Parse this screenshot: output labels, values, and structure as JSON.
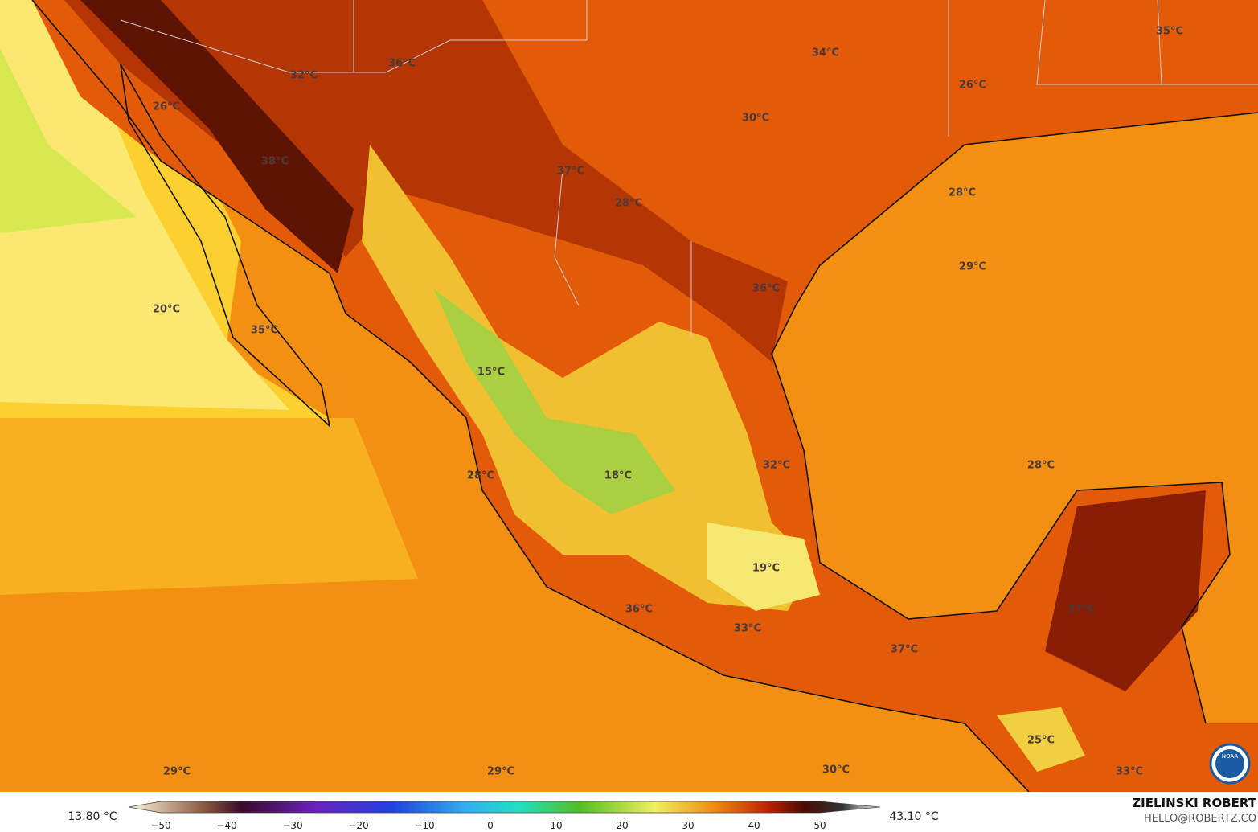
{
  "map": {
    "labels": [
      "35°C",
      "34°C",
      "36°C",
      "32°C",
      "26°C",
      "26°C",
      "30°C",
      "38°C",
      "37°C",
      "28°C",
      "28°C",
      "29°C",
      "36°C",
      "20°C",
      "35°C",
      "15°C",
      "28°C",
      "32°C",
      "28°C",
      "18°C",
      "19°C",
      "37°C",
      "36°C",
      "33°C",
      "37°C",
      "25°C",
      "29°C",
      "29°C",
      "30°C",
      "33°C"
    ]
  },
  "legend": {
    "min": "13.80 °C",
    "max": "43.10 °C",
    "ticks": [
      "−50",
      "−40",
      "−30",
      "−20",
      "−10",
      "0",
      "10",
      "20",
      "30",
      "40",
      "50"
    ]
  },
  "credit": {
    "name": "ZIELINSKI ROBERT",
    "email": "HELLO@ROBERTZ.CO"
  },
  "logo": "NOAA"
}
